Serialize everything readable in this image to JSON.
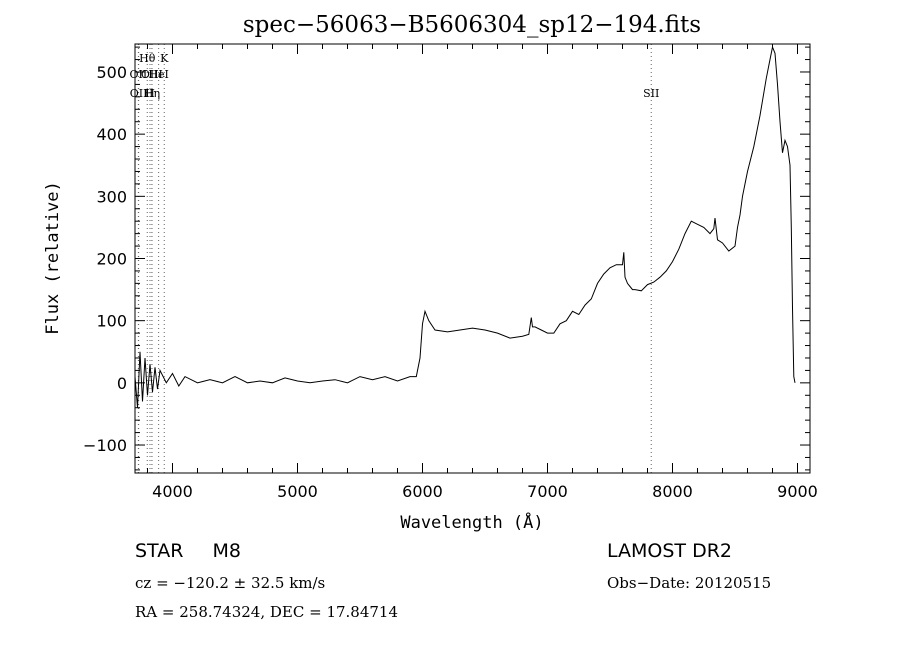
{
  "chart_data": {
    "type": "line",
    "title": "spec−56063−B5606304_sp12−194.fits",
    "xlabel": "Wavelength (Å)",
    "ylabel": "Flux (relative)",
    "xlim": [
      3700,
      9100
    ],
    "ylim": [
      -145,
      545
    ],
    "x_ticks": [
      4000,
      5000,
      6000,
      7000,
      8000,
      9000
    ],
    "x_tick_labels": [
      "4000",
      "5000",
      "6000",
      "7000",
      "8000",
      "9000"
    ],
    "y_ticks": [
      -100,
      0,
      100,
      200,
      300,
      400,
      500
    ],
    "y_tick_labels": [
      "−100",
      "0",
      "100",
      "200",
      "300",
      "400",
      "500"
    ],
    "grid": false,
    "series": [
      {
        "x": [
          3700,
          3720,
          3740,
          3760,
          3780,
          3800,
          3820,
          3840,
          3860,
          3880,
          3900,
          3950,
          4000,
          4050,
          4100,
          4200,
          4300,
          4400,
          4500,
          4600,
          4700,
          4800,
          4900,
          5000,
          5100,
          5200,
          5300,
          5400,
          5500,
          5600,
          5700,
          5800,
          5900,
          5950,
          5980,
          6000,
          6020,
          6050,
          6100,
          6200,
          6300,
          6400,
          6500,
          6600,
          6700,
          6800,
          6850,
          6870,
          6880,
          6900,
          6950,
          7000,
          7050,
          7100,
          7150,
          7200,
          7250,
          7300,
          7350,
          7400,
          7450,
          7500,
          7550,
          7600,
          7610,
          7620,
          7640,
          7660,
          7680,
          7700,
          7750,
          7800,
          7850,
          7900,
          7950,
          8000,
          8050,
          8100,
          8150,
          8200,
          8250,
          8300,
          8330,
          8340,
          8360,
          8400,
          8450,
          8500,
          8520,
          8540,
          8560,
          8580,
          8600,
          8650,
          8700,
          8750,
          8780,
          8800,
          8820,
          8840,
          8860,
          8880,
          8900,
          8920,
          8940,
          8950,
          8960,
          8970,
          8980
        ],
        "y": [
          10,
          -40,
          50,
          -30,
          40,
          -20,
          30,
          -15,
          25,
          -10,
          20,
          0,
          15,
          -5,
          10,
          0,
          5,
          0,
          10,
          0,
          3,
          0,
          8,
          3,
          0,
          3,
          5,
          0,
          10,
          5,
          10,
          3,
          10,
          10,
          40,
          95,
          115,
          100,
          85,
          82,
          85,
          88,
          85,
          80,
          72,
          75,
          78,
          105,
          90,
          90,
          85,
          80,
          80,
          95,
          100,
          115,
          110,
          125,
          135,
          160,
          175,
          185,
          190,
          190,
          210,
          170,
          160,
          155,
          150,
          150,
          148,
          158,
          162,
          170,
          180,
          195,
          215,
          240,
          260,
          255,
          250,
          240,
          248,
          265,
          230,
          225,
          212,
          220,
          250,
          270,
          300,
          320,
          340,
          380,
          430,
          490,
          520,
          540,
          530,
          480,
          420,
          370,
          390,
          380,
          350,
          250,
          120,
          10,
          0
        ]
      }
    ],
    "annotations": [
      {
        "label": "Hθ",
        "x": 3798
      },
      {
        "label": "K",
        "x": 3934
      },
      {
        "label": "OII",
        "x": 3727
      },
      {
        "label": "OIII",
        "x": 3835
      },
      {
        "label": "HeI",
        "x": 3889
      },
      {
        "label": "OII",
        "x": 3729
      },
      {
        "label": "H",
        "x": 3820
      },
      {
        "label": "Hη",
        "x": 3836
      },
      {
        "label": "SII",
        "x": 7830
      }
    ]
  },
  "footer": {
    "object_type": "STAR",
    "subclass": "M8",
    "survey": "LAMOST DR2",
    "cz": "cz = −120.2 ± 32.5 km/s",
    "obs_date": "Obs−Date: 20120515",
    "coords": "RA = 258.74324, DEC =  17.84714"
  }
}
